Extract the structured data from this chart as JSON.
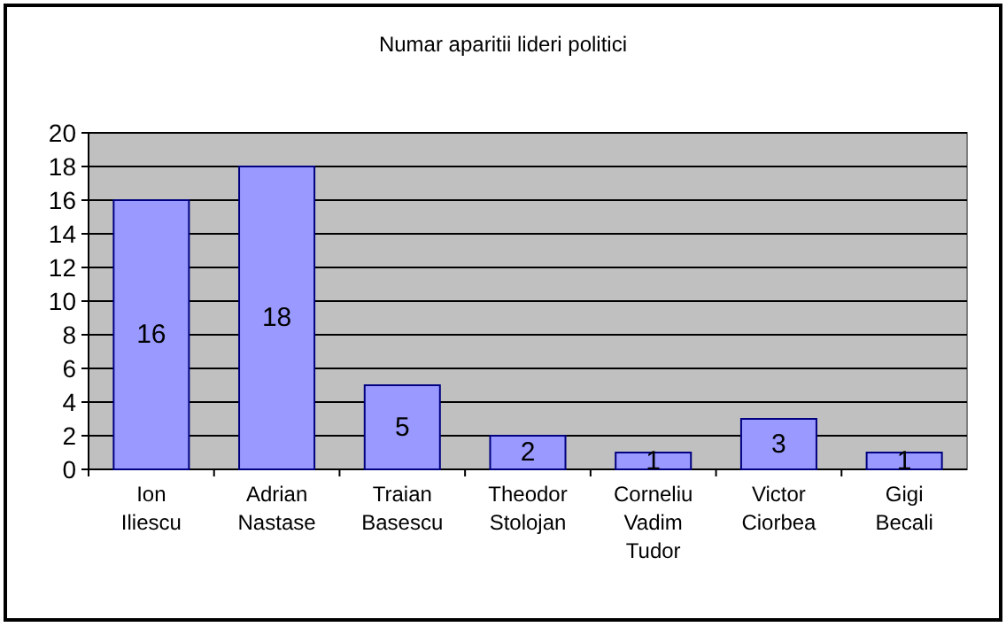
{
  "chart_data": {
    "type": "bar",
    "title": "Numar  aparitii lideri politici",
    "categories": [
      "Ion Iliescu",
      "Adrian Nastase",
      "Traian Basescu",
      "Theodor Stolojan",
      "Corneliu Vadim Tudor",
      "Victor Ciorbea",
      "Gigi Becali"
    ],
    "values": [
      16,
      18,
      5,
      2,
      1,
      3,
      1
    ],
    "color": "#9999ff",
    "ylim": [
      0,
      20
    ],
    "yticks": [
      0,
      2,
      4,
      6,
      8,
      10,
      12,
      14,
      16,
      18,
      20
    ],
    "grid": "y",
    "data_labels": true
  }
}
